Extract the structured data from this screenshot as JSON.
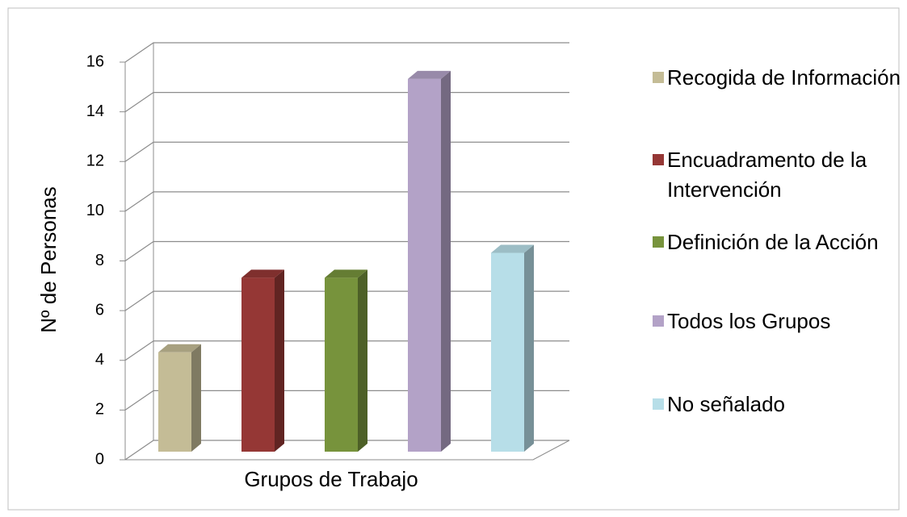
{
  "chart_data": {
    "type": "bar",
    "xlabel": "Grupos de Trabajo",
    "ylabel": "Nº de Personas",
    "categories": [
      "Grupos de Trabajo"
    ],
    "series": [
      {
        "name": "Recogida de Información",
        "color": "#c4bc96",
        "values": [
          4
        ]
      },
      {
        "name": "Encuadramento de la Intervención",
        "color": "#953735",
        "values": [
          7
        ]
      },
      {
        "name": "Definición de la Acción",
        "color": "#77933c",
        "values": [
          7
        ]
      },
      {
        "name": "Todos los Grupos",
        "color": "#b3a2c7",
        "values": [
          15
        ]
      },
      {
        "name": "No señalado",
        "color": "#b7dee8",
        "values": [
          8
        ]
      }
    ],
    "ylim": [
      0,
      16
    ],
    "yticks": [
      0,
      2,
      4,
      6,
      8,
      10,
      12,
      14,
      16
    ],
    "grid": true,
    "legend": "right"
  }
}
